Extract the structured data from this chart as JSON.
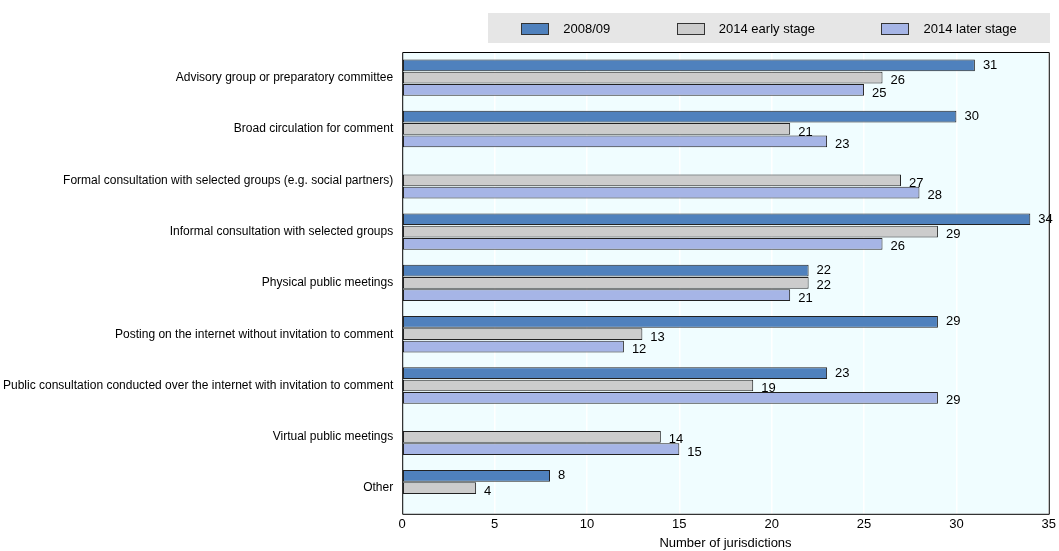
{
  "chart_data": {
    "type": "bar",
    "orientation": "horizontal",
    "categories": [
      "Advisory group or preparatory committee",
      "Broad circulation for comment",
      "Formal consultation with selected groups (e.g. social partners)",
      "Informal consultation with selected groups",
      "Physical public meetings",
      "Posting on the internet without invitation to comment",
      "Public consultation conducted over the internet with invitation to comment",
      "Virtual public meetings",
      "Other"
    ],
    "series": [
      {
        "name": "2008/09",
        "color": "#4f81bd",
        "values": [
          31,
          30,
          null,
          34,
          22,
          29,
          23,
          null,
          8
        ]
      },
      {
        "name": "2014 early stage",
        "color": "#cccccc",
        "values": [
          26,
          21,
          27,
          29,
          22,
          13,
          19,
          14,
          4
        ]
      },
      {
        "name": "2014 later stage",
        "color": "#a6b5e6",
        "values": [
          25,
          23,
          28,
          26,
          21,
          12,
          29,
          15,
          null
        ]
      }
    ],
    "xlabel": "Number of jurisdictions",
    "xlim": [
      0,
      35
    ],
    "xticks": [
      0,
      5,
      10,
      15,
      20,
      25,
      30,
      35
    ],
    "grid": "x",
    "legend": "top",
    "data_labels": true
  }
}
